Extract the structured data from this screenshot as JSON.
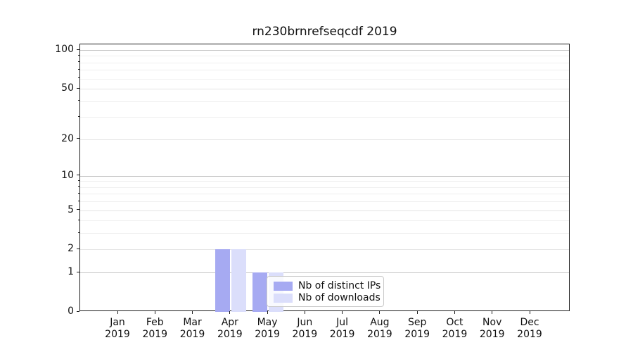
{
  "chart_data": {
    "type": "bar",
    "title": "rn230brnrefseqcdf 2019",
    "categories": [
      "Jan",
      "Feb",
      "Mar",
      "Apr",
      "May",
      "Jun",
      "Jul",
      "Aug",
      "Sep",
      "Oct",
      "Nov",
      "Dec"
    ],
    "year_label": "2019",
    "series": [
      {
        "name": "Nb of distinct IPs",
        "color": "#a6aaf2",
        "values": [
          0,
          0,
          0,
          2,
          1,
          0,
          0,
          0,
          0,
          0,
          0,
          0
        ]
      },
      {
        "name": "Nb of downloads",
        "color": "#dbdefb",
        "values": [
          0,
          0,
          0,
          2,
          1,
          0,
          0,
          0,
          0,
          0,
          0,
          0
        ]
      }
    ],
    "y_axis": {
      "scale": "log1p",
      "ticks": [
        0,
        1,
        2,
        5,
        10,
        20,
        50,
        100
      ],
      "strong_gridlines": [
        1,
        10,
        100
      ],
      "minor_gridlines": [
        3,
        4,
        6,
        7,
        8,
        9,
        30,
        40,
        60,
        70,
        80,
        90
      ],
      "ylim": [
        0,
        110
      ]
    },
    "x_axis": {
      "tick_label_line2": "2019"
    },
    "grid": "horizontal major and minor",
    "legend": {
      "entries": [
        "Nb of distinct IPs",
        "Nb of downloads"
      ],
      "position": "inside, lower middle-right"
    },
    "colors": {
      "distinct_ips_bar": "#a6aaf2",
      "downloads_bar": "#dbdefb",
      "strong_grid": "#c3c3c3",
      "soft_grid": "#e4e4e4",
      "minor_grid": "#efefef"
    }
  }
}
